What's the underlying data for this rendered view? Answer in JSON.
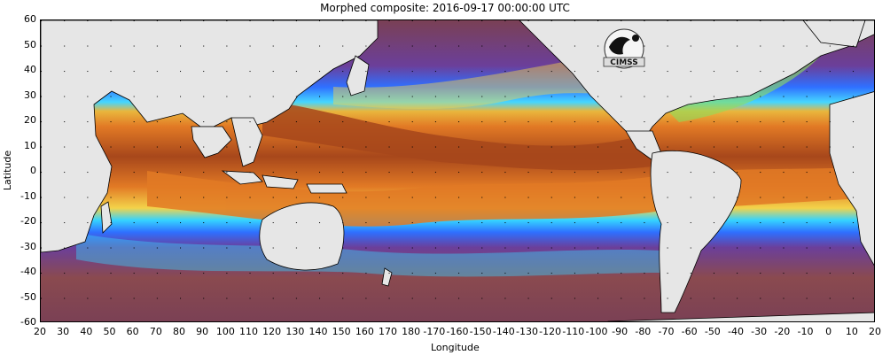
{
  "title": "Morphed composite: 2016-09-17 00:00:00 UTC",
  "axis": {
    "xlabel": "Longitude",
    "ylabel": "Latitude",
    "yticks": [
      "60",
      "50",
      "40",
      "30",
      "20",
      "10",
      "0",
      "-10",
      "-20",
      "-30",
      "-40",
      "-50",
      "-60"
    ],
    "xticks": [
      "20",
      "30",
      "40",
      "50",
      "60",
      "70",
      "80",
      "90",
      "100",
      "110",
      "120",
      "130",
      "140",
      "150",
      "160",
      "170",
      "180",
      "-170",
      "-160",
      "-150",
      "-140",
      "-130",
      "-120",
      "-110",
      "-100",
      "-90",
      "-80",
      "-70",
      "-60",
      "-50",
      "-40",
      "-30",
      "-20",
      "-10",
      "0",
      "10",
      "20"
    ]
  },
  "logo": {
    "text": "CIMSS",
    "icon": "cimss-logo-icon"
  },
  "colors": {
    "land": "#e6e6e6",
    "ocean_dry": "#6e3b4a",
    "purple": "#6b3f9a",
    "blue": "#2f6fff",
    "cyan": "#35d3ff",
    "green": "#8ee05b",
    "yellow": "#f3d34a",
    "orange": "#e8862b",
    "brown": "#8b3b12"
  }
}
